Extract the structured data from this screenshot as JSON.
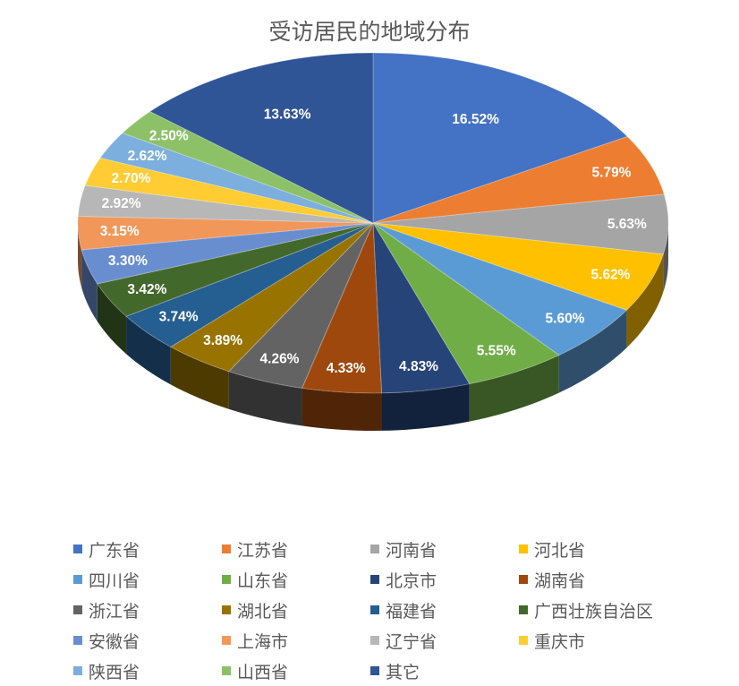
{
  "chart_data": {
    "type": "pie",
    "title": "受访居民的地域分布",
    "value_format": "percent",
    "legend_position": "bottom",
    "categories": [
      "广东省",
      "江苏省",
      "河南省",
      "河北省",
      "四川省",
      "山东省",
      "北京市",
      "湖南省",
      "浙江省",
      "湖北省",
      "福建省",
      "广西壮族自治区",
      "安徽省",
      "上海市",
      "辽宁省",
      "重庆市",
      "陕西省",
      "山西省",
      "其它"
    ],
    "values": [
      16.52,
      5.79,
      5.63,
      5.62,
      5.6,
      5.55,
      4.83,
      4.33,
      4.26,
      3.89,
      3.74,
      3.42,
      3.3,
      3.15,
      2.92,
      2.7,
      2.62,
      2.5,
      13.63
    ],
    "labels": [
      "16.52%",
      "5.79%",
      "5.63%",
      "5.62%",
      "5.60%",
      "5.55%",
      "4.83%",
      "4.33%",
      "4.26%",
      "3.89%",
      "3.74%",
      "3.42%",
      "3.30%",
      "3.15%",
      "2.92%",
      "2.70%",
      "2.62%",
      "2.50%",
      "13.63%"
    ],
    "colors": [
      "#4472C4",
      "#ED7D31",
      "#A5A5A5",
      "#FFC000",
      "#5B9BD5",
      "#70AD47",
      "#264478",
      "#9E480E",
      "#636363",
      "#997300",
      "#255E91",
      "#43682B",
      "#698ED0",
      "#F1975A",
      "#B7B7B7",
      "#FFCD33",
      "#7CAFDD",
      "#8CC168",
      "#2F5597"
    ]
  }
}
